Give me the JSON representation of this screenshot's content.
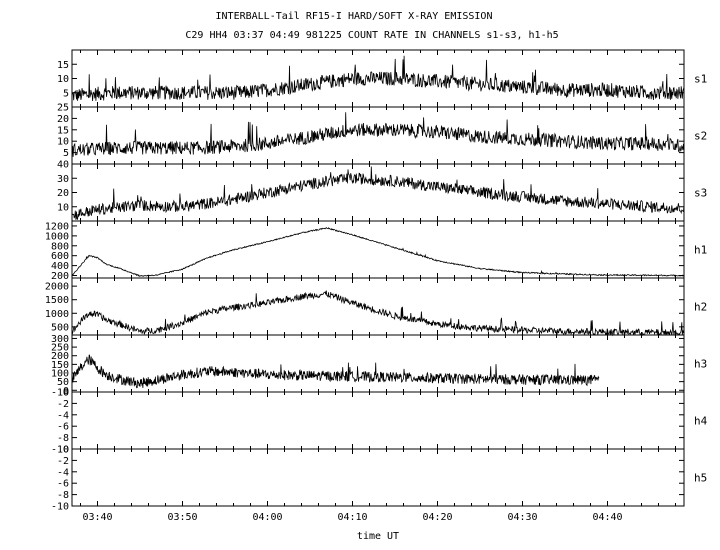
{
  "title": "INTERBALL-Tail RF15-I HARD/SOFT X-RAY EMISSION",
  "subtitle": "C29 HH4 03:37 04:49 981225  COUNT RATE IN CHANNELS s1-s3, h1-h5",
  "chart_data": {
    "type": "line",
    "title": "INTERBALL-Tail RF15-I HARD/SOFT X-RAY EMISSION",
    "subtitle": "C29 HH4 03:37 04:49 981225  COUNT RATE IN CHANNELS s1-s3, h1-h5",
    "xlabel": "time UT",
    "xlim": [
      "03:37",
      "04:49"
    ],
    "x_ticks": [
      "03:40",
      "03:50",
      "04:00",
      "04:10",
      "04:20",
      "04:30",
      "04:40"
    ],
    "grid": false,
    "panels": [
      {
        "name": "s1",
        "ylim": [
          0,
          20
        ],
        "y_ticks": [
          "5",
          "10",
          "15"
        ],
        "x": [
          "03:37",
          "03:42",
          "03:47",
          "03:52",
          "03:57",
          "04:00",
          "04:05",
          "04:10",
          "04:15",
          "04:20",
          "04:25",
          "04:30",
          "04:35",
          "04:40",
          "04:45",
          "04:49"
        ],
        "values": [
          4,
          5,
          5,
          5,
          5,
          6,
          8,
          10,
          10,
          9,
          8,
          7,
          6,
          6,
          5,
          5
        ],
        "noise": 2.5
      },
      {
        "name": "s2",
        "ylim": [
          0,
          25
        ],
        "y_ticks": [
          "5",
          "10",
          "15",
          "20",
          "25"
        ],
        "x": [
          "03:37",
          "03:42",
          "03:47",
          "03:52",
          "03:57",
          "04:00",
          "04:05",
          "04:10",
          "04:15",
          "04:20",
          "04:25",
          "04:30",
          "04:35",
          "04:40",
          "04:45",
          "04:49"
        ],
        "values": [
          6,
          7,
          7,
          7,
          8,
          9,
          12,
          15,
          15,
          14,
          12,
          11,
          10,
          9,
          9,
          8
        ],
        "noise": 3
      },
      {
        "name": "s3",
        "ylim": [
          0,
          40
        ],
        "y_ticks": [
          "10",
          "20",
          "30",
          "40"
        ],
        "x": [
          "03:37",
          "03:40",
          "03:45",
          "03:50",
          "03:55",
          "04:00",
          "04:05",
          "04:10",
          "04:15",
          "04:20",
          "04:25",
          "04:30",
          "04:35",
          "04:40",
          "04:45",
          "04:49"
        ],
        "values": [
          4,
          8,
          11,
          10,
          14,
          20,
          26,
          30,
          28,
          24,
          20,
          17,
          14,
          12,
          10,
          9
        ],
        "noise": 4
      },
      {
        "name": "h1",
        "ylim": [
          150,
          1300
        ],
        "y_ticks": [
          "200",
          "400",
          "600",
          "800",
          "1000",
          "1200"
        ],
        "x": [
          "03:37",
          "03:38",
          "03:39",
          "03:40",
          "03:41",
          "03:43",
          "03:45",
          "03:47",
          "03:50",
          "03:53",
          "03:56",
          "04:00",
          "04:04",
          "04:07",
          "04:10",
          "04:15",
          "04:20",
          "04:25",
          "04:30",
          "04:35",
          "04:40",
          "04:45",
          "04:49"
        ],
        "values": [
          200,
          400,
          600,
          560,
          430,
          320,
          190,
          210,
          330,
          560,
          720,
          880,
          1060,
          1160,
          1020,
          760,
          500,
          340,
          260,
          230,
          210,
          205,
          200
        ],
        "noise": 12
      },
      {
        "name": "h2",
        "ylim": [
          200,
          2300
        ],
        "y_ticks": [
          "500",
          "1000",
          "1500",
          "2000"
        ],
        "x": [
          "03:37",
          "03:38",
          "03:39",
          "03:40",
          "03:41",
          "03:43",
          "03:45",
          "03:47",
          "03:50",
          "03:53",
          "03:56",
          "04:00",
          "04:04",
          "04:07",
          "04:10",
          "04:15",
          "04:20",
          "04:25",
          "04:30",
          "04:35",
          "04:40",
          "04:45",
          "04:49"
        ],
        "values": [
          300,
          700,
          1000,
          950,
          760,
          560,
          330,
          380,
          650,
          1050,
          1220,
          1380,
          1620,
          1720,
          1380,
          900,
          600,
          450,
          380,
          340,
          320,
          300,
          290
        ],
        "noise": 120
      },
      {
        "name": "h3",
        "ylim": [
          -10,
          320
        ],
        "y_ticks": [
          "-10",
          "0",
          "50",
          "100",
          "150",
          "200",
          "250",
          "300"
        ],
        "x": [
          "03:37",
          "03:38",
          "03:39",
          "03:40",
          "03:41",
          "03:43",
          "03:45",
          "03:47",
          "03:50",
          "03:53",
          "03:56",
          "04:00",
          "04:05",
          "04:10",
          "04:15",
          "04:20",
          "04:25",
          "04:30",
          "04:35",
          "04:39"
        ],
        "values": [
          60,
          130,
          180,
          130,
          90,
          60,
          40,
          60,
          90,
          110,
          105,
          90,
          85,
          80,
          75,
          70,
          65,
          62,
          60,
          58
        ],
        "noise": 30,
        "end": "04:39"
      },
      {
        "name": "h4",
        "ylim": [
          -10,
          0
        ],
        "y_ticks": [
          "-10",
          "-8",
          "-6",
          "-4",
          "-2",
          "0"
        ],
        "x": [],
        "values": []
      },
      {
        "name": "h5",
        "ylim": [
          -10,
          0
        ],
        "y_ticks": [
          "-10",
          "-8",
          "-6",
          "-4",
          "-2",
          "0"
        ],
        "x": [],
        "values": []
      }
    ]
  }
}
